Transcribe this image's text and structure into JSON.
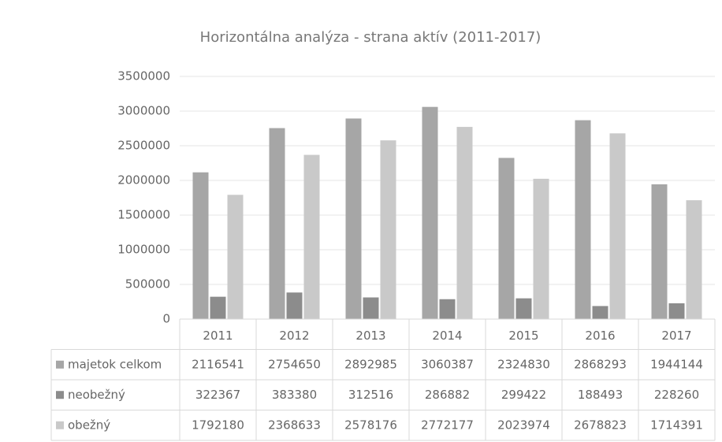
{
  "chart_data": {
    "type": "bar",
    "title": "Horizontálna analýza - strana aktív (2011-2017)",
    "categories": [
      "2011",
      "2012",
      "2013",
      "2014",
      "2015",
      "2016",
      "2017"
    ],
    "series": [
      {
        "name": "majetok celkom",
        "color": "#a6a6a6",
        "values": [
          2116541,
          2754650,
          2892985,
          3060387,
          2324830,
          2868293,
          1944144
        ]
      },
      {
        "name": "neobežný",
        "color": "#8c8c8c",
        "values": [
          322367,
          383380,
          312516,
          286882,
          299422,
          188493,
          228260
        ]
      },
      {
        "name": "obežný",
        "color": "#c9c9c9",
        "values": [
          1792180,
          2368633,
          2578176,
          2772177,
          2023974,
          2678823,
          1714391
        ]
      }
    ],
    "ylim": [
      0,
      3500000
    ],
    "yticks": [
      0,
      500000,
      1000000,
      1500000,
      2000000,
      2500000,
      3000000,
      3500000
    ],
    "grid": true
  }
}
